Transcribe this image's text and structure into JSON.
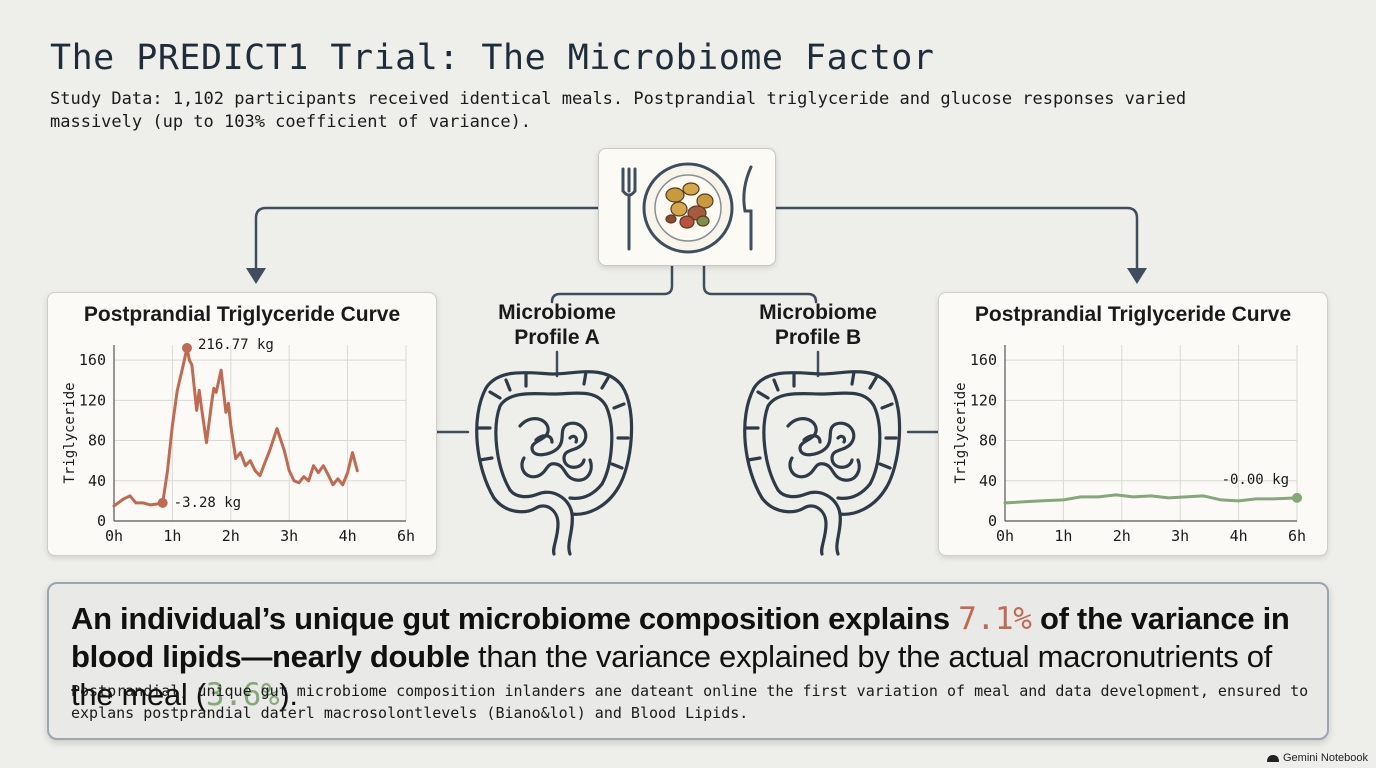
{
  "header": {
    "title": "The PREDICT1 Trial: The Microbiome Factor",
    "subtitle": "Study Data: 1,102 participants received identical meals. Postprandial triglyceride and glucose responses varied massively (up to 103% coefficient of variance)."
  },
  "icons": {
    "meal": "plate-with-fork-and-knife-icon",
    "gut": "intestine-icon",
    "brand": "gemini-notebook-icon"
  },
  "colors": {
    "high_response": "#c06a52",
    "low_response": "#86a77a",
    "connector": "#3f4d5c"
  },
  "profiles": {
    "a": {
      "label_line1": "Microbiome",
      "label_line2": "Profile A"
    },
    "b": {
      "label_line1": "Microbiome",
      "label_line2": "Profile B"
    }
  },
  "chart_data": [
    {
      "type": "line",
      "title": "Postprandial Triglyceride Curve",
      "xlabel": "",
      "ylabel": "Triglyceride",
      "x_ticks": [
        "0h",
        "1h",
        "2h",
        "3h",
        "4h",
        "6h"
      ],
      "y_ticks": [
        0,
        40,
        80,
        120,
        160
      ],
      "xlim": [
        0,
        6
      ],
      "ylim": [
        0,
        175
      ],
      "grid": true,
      "series": [
        {
          "color": "#c06a52",
          "x": [
            0,
            0.2,
            0.33,
            0.45,
            0.6,
            0.75,
            0.9,
            1.0,
            1.1,
            1.2,
            1.3,
            1.4,
            1.5,
            1.55,
            1.6,
            1.7,
            1.75,
            1.8,
            1.9,
            2.0,
            2.05,
            2.1,
            2.2,
            2.3,
            2.35,
            2.4,
            2.5,
            2.6,
            2.7,
            2.8,
            2.9,
            3.0,
            3.1,
            3.2,
            3.35,
            3.5,
            3.6,
            3.7,
            3.8,
            3.9,
            4.0,
            4.1,
            4.2,
            4.3,
            4.4,
            4.5,
            4.6,
            4.7,
            4.8,
            4.9,
            5.0
          ],
          "y": [
            15,
            22,
            25,
            18,
            18,
            16,
            17,
            18,
            50,
            95,
            130,
            150,
            172,
            160,
            155,
            110,
            130,
            112,
            78,
            115,
            132,
            128,
            150,
            108,
            117,
            95,
            62,
            68,
            55,
            60,
            50,
            45,
            58,
            70,
            92,
            70,
            50,
            40,
            38,
            44,
            40,
            55,
            48,
            55,
            46,
            36,
            42,
            36,
            48,
            68,
            50
          ],
          "markers": [
            {
              "x": 1.5,
              "y": 172,
              "label": "216.77 kg"
            },
            {
              "x": 1.0,
              "y": 18,
              "label": "-3.28 kg"
            }
          ]
        }
      ]
    },
    {
      "type": "line",
      "title": "Postprandial Triglyceride Curve",
      "xlabel": "",
      "ylabel": "Triglyceride",
      "x_ticks": [
        "0h",
        "1h",
        "2h",
        "3h",
        "4h",
        "6h"
      ],
      "y_ticks": [
        0,
        40,
        80,
        120,
        160
      ],
      "xlim": [
        0,
        5
      ],
      "ylim": [
        0,
        175
      ],
      "grid": true,
      "series": [
        {
          "color": "#86a77a",
          "x": [
            0,
            0.3,
            0.6,
            1.0,
            1.3,
            1.6,
            1.9,
            2.2,
            2.5,
            2.8,
            3.1,
            3.4,
            3.7,
            4.0,
            4.3,
            4.6,
            5.0
          ],
          "y": [
            18,
            19,
            20,
            21,
            24,
            24,
            26,
            24,
            25,
            23,
            24,
            25,
            21,
            20,
            22,
            22,
            23
          ],
          "markers": [
            {
              "x": 5.0,
              "y": 23,
              "label": "-0.00 kg"
            }
          ]
        }
      ]
    }
  ],
  "summary": {
    "headline_bold": "An individual’s unique gut microbiome composition explains",
    "stat_microbiome": "7.1%",
    "headline_bold_2": "of the variance in blood lipids—nearly double",
    "headline_plain": "than the variance explained by the actual macronutrients of the meal (",
    "stat_macro": "3.6%",
    "headline_end": ").",
    "body": "Postprandial, unique gut microbiome composition inlanders ane dateant online the first variation of meal and data development, ensured to explans postprandial daterl macrosolontlevels (Biano&lol) and Blood Lipids."
  },
  "footer": {
    "brand": "Gemini Notebook"
  }
}
